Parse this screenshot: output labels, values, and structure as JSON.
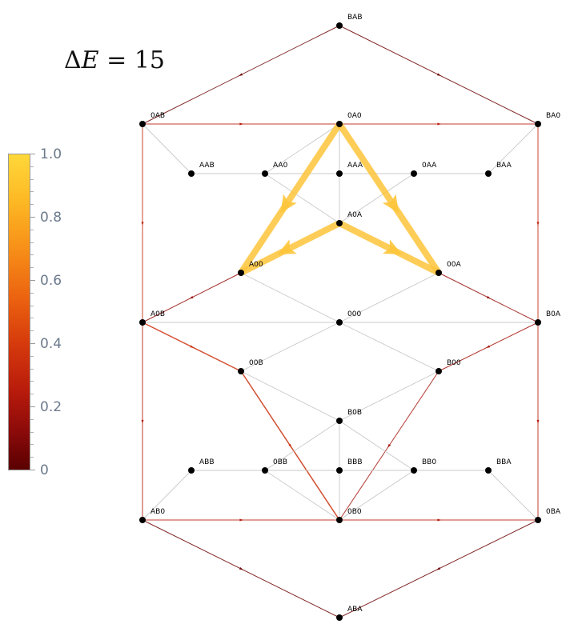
{
  "title": {
    "delta": "Δ",
    "symbol": "E",
    "equals": "=",
    "value": "15"
  },
  "colorbar": {
    "labels": [
      "1.0",
      "0.8",
      "0.6",
      "0.4",
      "0.2",
      "0"
    ],
    "low_color": "#5a0000",
    "high_color": "#ffd83a"
  },
  "nodes": [
    {
      "id": "BAB"
    },
    {
      "id": "0AB"
    },
    {
      "id": "0A0"
    },
    {
      "id": "BA0"
    },
    {
      "id": "AAB"
    },
    {
      "id": "AA0"
    },
    {
      "id": "AAA"
    },
    {
      "id": "0AA"
    },
    {
      "id": "BAA"
    },
    {
      "id": "A0A"
    },
    {
      "id": "A00"
    },
    {
      "id": "00A"
    },
    {
      "id": "A0B"
    },
    {
      "id": "000"
    },
    {
      "id": "B0A"
    },
    {
      "id": "00B"
    },
    {
      "id": "B00"
    },
    {
      "id": "B0B"
    },
    {
      "id": "ABB"
    },
    {
      "id": "0BB"
    },
    {
      "id": "BBB"
    },
    {
      "id": "BB0"
    },
    {
      "id": "BBA"
    },
    {
      "id": "AB0"
    },
    {
      "id": "0B0"
    },
    {
      "id": "0BA"
    },
    {
      "id": "ABA"
    }
  ],
  "edges": [
    {
      "a": "BAB",
      "b": "0AB",
      "w": 0.05
    },
    {
      "a": "BAB",
      "b": "BA0",
      "w": 0.05
    },
    {
      "a": "0AB",
      "b": "0A0",
      "w": 0.25
    },
    {
      "a": "0A0",
      "b": "BA0",
      "w": 0.25
    },
    {
      "a": "0AB",
      "b": "A0B",
      "w": 0.3
    },
    {
      "a": "BA0",
      "b": "B0A",
      "w": 0.3
    },
    {
      "a": "0AB",
      "b": "AAB",
      "w": 0.02
    },
    {
      "a": "AAB",
      "b": "AA0",
      "w": 0.02
    },
    {
      "a": "0AA",
      "b": "BAA",
      "w": 0.02
    },
    {
      "a": "BAA",
      "b": "BA0",
      "w": 0.02
    },
    {
      "a": "AA0",
      "b": "0A0",
      "w": 0.02
    },
    {
      "a": "0A0",
      "b": "AAA",
      "w": 0.02
    },
    {
      "a": "0A0",
      "b": "A0A",
      "w": 0.02
    },
    {
      "a": "AA0",
      "b": "AAA",
      "w": 0.02
    },
    {
      "a": "AAA",
      "b": "0AA",
      "w": 0.02
    },
    {
      "a": "AA0",
      "b": "A0A",
      "w": 0.02
    },
    {
      "a": "A0A",
      "b": "0AA",
      "w": 0.02
    },
    {
      "a": "A00",
      "b": "A0B",
      "w": 0.15
    },
    {
      "a": "00A",
      "b": "B0A",
      "w": 0.15
    },
    {
      "a": "A00",
      "b": "000",
      "w": 0.02
    },
    {
      "a": "000",
      "b": "00A",
      "w": 0.02
    },
    {
      "a": "A0B",
      "b": "000",
      "w": 0.02
    },
    {
      "a": "000",
      "b": "B0A",
      "w": 0.02
    },
    {
      "a": "A0B",
      "b": "00B",
      "w": 0.35
    },
    {
      "a": "B0A",
      "b": "B00",
      "w": 0.2
    },
    {
      "a": "000",
      "b": "00B",
      "w": 0.02
    },
    {
      "a": "000",
      "b": "B00",
      "w": 0.02
    },
    {
      "a": "00B",
      "b": "B0B",
      "w": 0.02
    },
    {
      "a": "B0B",
      "b": "B00",
      "w": 0.02
    },
    {
      "a": "00B",
      "b": "0B0",
      "w": 0.35
    },
    {
      "a": "B00",
      "b": "0B0",
      "w": 0.2
    },
    {
      "a": "B0B",
      "b": "0BB",
      "w": 0.02
    },
    {
      "a": "B0B",
      "b": "BB0",
      "w": 0.02
    },
    {
      "a": "B0B",
      "b": "BBB",
      "w": 0.02
    },
    {
      "a": "ABB",
      "b": "0BB",
      "w": 0.02
    },
    {
      "a": "0BB",
      "b": "BBB",
      "w": 0.02
    },
    {
      "a": "BBB",
      "b": "BB0",
      "w": 0.02
    },
    {
      "a": "BB0",
      "b": "BBA",
      "w": 0.02
    },
    {
      "a": "ABB",
      "b": "AB0",
      "w": 0.02
    },
    {
      "a": "BBA",
      "b": "0BA",
      "w": 0.02
    },
    {
      "a": "0BB",
      "b": "0B0",
      "w": 0.02
    },
    {
      "a": "BB0",
      "b": "0B0",
      "w": 0.02
    },
    {
      "a": "BBB",
      "b": "0B0",
      "w": 0.02
    },
    {
      "a": "A0B",
      "b": "AB0",
      "w": 0.25
    },
    {
      "a": "B0A",
      "b": "0BA",
      "w": 0.25
    },
    {
      "a": "AB0",
      "b": "0B0",
      "w": 0.25
    },
    {
      "a": "0B0",
      "b": "0BA",
      "w": 0.25
    },
    {
      "a": "AB0",
      "b": "ABA",
      "w": 0.05
    },
    {
      "a": "0BA",
      "b": "ABA",
      "w": 0.05
    }
  ],
  "flow_path": {
    "value": 1.0,
    "color": "#fdc53a",
    "arrows": [
      {
        "from": "0A0",
        "to": "A00"
      },
      {
        "from": "A0A",
        "to": "A00"
      },
      {
        "from": "0A0",
        "to": "00A"
      },
      {
        "from": "A0A",
        "to": "00A"
      }
    ]
  }
}
